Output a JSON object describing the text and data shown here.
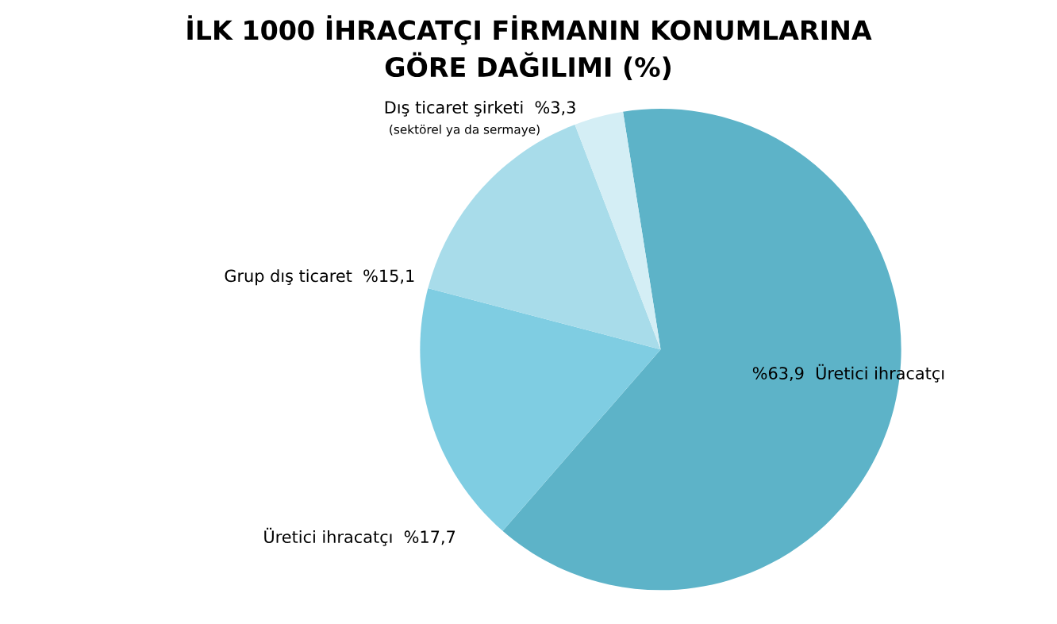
{
  "chart_data": {
    "type": "pie",
    "title": "İLK 1000 İHRACATÇI FİRMANIN KONUMLARINA\nGÖRE DAĞILIMI (%)",
    "categories": [
      "Üretici ihracatçı",
      "Üretici ihracatçı",
      "Grup dış ticaret",
      "Dış ticaret şirketi"
    ],
    "values": [
      63.9,
      17.7,
      15.1,
      3.3
    ],
    "value_labels": [
      "%63,9",
      "%17,7",
      "%15,1",
      "%3,3"
    ],
    "colors": [
      "#5db3c8",
      "#7fcde2",
      "#a8dcea",
      "#d4eef5"
    ],
    "annotations": [
      "(sektörel ya da sermaye)"
    ]
  }
}
